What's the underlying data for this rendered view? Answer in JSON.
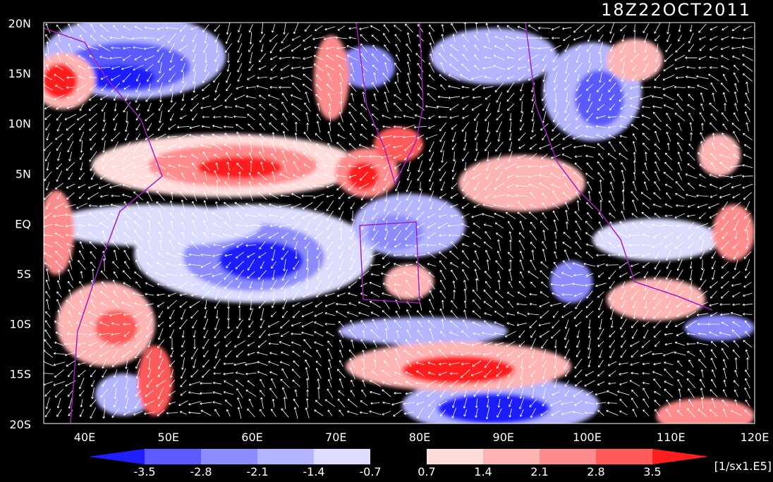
{
  "header": {
    "title": "18Z22OCT2011"
  },
  "lat_labels": [
    "20N",
    "15N",
    "10N",
    "5N",
    "EQ",
    "5S",
    "10S",
    "15S",
    "20S"
  ],
  "lon_labels": [
    "40E",
    "50E",
    "60E",
    "70E",
    "80E",
    "90E",
    "100E",
    "110E",
    "120E"
  ],
  "colorbar": {
    "labels": [
      "-3.5",
      "-2.8",
      "-2.1",
      "-1.4",
      "-0.7",
      "0.7",
      "1.4",
      "2.1",
      "2.8",
      "3.5"
    ],
    "unit": "[1/sx1.E5]"
  }
}
